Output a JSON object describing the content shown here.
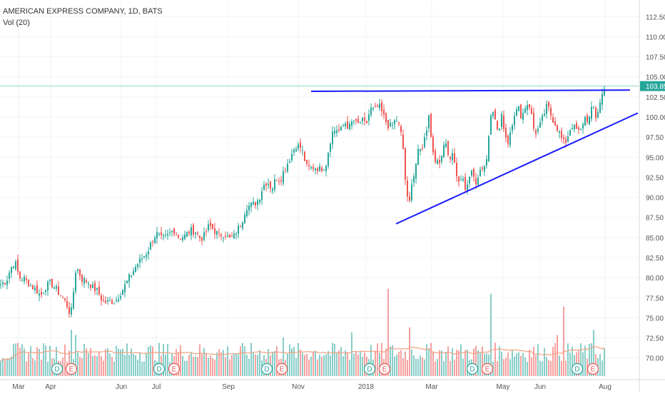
{
  "legend": {
    "symbol_line": "AMERICAN EXPRESS COMPANY, 1D, BATS",
    "volume_line": "Vol (20)"
  },
  "colors": {
    "up": "#26a69a",
    "down": "#ef5350",
    "trendline": "#1a1aff",
    "price_label_bg": "#26a69a",
    "volume_ma": "#f4a080",
    "axis_text": "#555555",
    "grid": "#f1f3f6"
  },
  "chart_data": {
    "type": "candlestick",
    "title": "AMERICAN EXPRESS COMPANY, 1D, BATS",
    "x_tick_labels": [
      "Mar",
      "Apr",
      "Jun",
      "Jul",
      "Sep",
      "Nov",
      "2018",
      "Mar",
      "May",
      "Jun",
      "Aug"
    ],
    "y_tick_labels": [
      "112.50",
      "110.00",
      "107.50",
      "105.00",
      "102.50",
      "100.00",
      "97.50",
      "95.00",
      "92.50",
      "90.00",
      "87.50",
      "85.00",
      "82.50",
      "80.00",
      "77.50",
      "75.00",
      "72.50",
      "70.00"
    ],
    "ylim": [
      69.0,
      113.5
    ],
    "last_price": 103.85,
    "last_price_label": "103.85",
    "grid": true,
    "price_path": [
      [
        0,
        79.2
      ],
      [
        8,
        79.6
      ],
      [
        14,
        81.2
      ],
      [
        20,
        82.0
      ],
      [
        26,
        80.0
      ],
      [
        34,
        79.8
      ],
      [
        42,
        79.0
      ],
      [
        50,
        78.5
      ],
      [
        56,
        77.7
      ],
      [
        62,
        78.8
      ],
      [
        70,
        79.4
      ],
      [
        78,
        78.5
      ],
      [
        86,
        77.6
      ],
      [
        92,
        76.8
      ],
      [
        98,
        75.3
      ],
      [
        101,
        77.0
      ],
      [
        104,
        80.8
      ],
      [
        108,
        81.0
      ],
      [
        114,
        79.8
      ],
      [
        122,
        79.5
      ],
      [
        130,
        78.7
      ],
      [
        136,
        78.3
      ],
      [
        142,
        77.2
      ],
      [
        148,
        76.9
      ],
      [
        154,
        77.1
      ],
      [
        160,
        77.0
      ],
      [
        166,
        77.8
      ],
      [
        172,
        78.7
      ],
      [
        180,
        80.0
      ],
      [
        186,
        80.9
      ],
      [
        192,
        81.8
      ],
      [
        200,
        82.6
      ],
      [
        206,
        83.3
      ],
      [
        212,
        84.6
      ],
      [
        218,
        85.5
      ],
      [
        226,
        84.8
      ],
      [
        234,
        85.2
      ],
      [
        242,
        86.0
      ],
      [
        250,
        85.0
      ],
      [
        258,
        85.2
      ],
      [
        266,
        85.9
      ],
      [
        274,
        85.7
      ],
      [
        280,
        84.8
      ],
      [
        286,
        85.3
      ],
      [
        292,
        86.5
      ],
      [
        298,
        86.0
      ],
      [
        306,
        85.3
      ],
      [
        314,
        85.5
      ],
      [
        320,
        84.8
      ],
      [
        326,
        85.0
      ],
      [
        332,
        86.0
      ],
      [
        338,
        87.0
      ],
      [
        344,
        88.8
      ],
      [
        350,
        89.0
      ],
      [
        356,
        89.2
      ],
      [
        362,
        89.8
      ],
      [
        368,
        91.5
      ],
      [
        374,
        92.0
      ],
      [
        380,
        91.0
      ],
      [
        386,
        92.5
      ],
      [
        392,
        92.2
      ],
      [
        398,
        93.6
      ],
      [
        404,
        94.6
      ],
      [
        410,
        95.8
      ],
      [
        414,
        96.5
      ],
      [
        420,
        96.2
      ],
      [
        424,
        95.5
      ],
      [
        428,
        93.8
      ],
      [
        434,
        93.6
      ],
      [
        440,
        93.8
      ],
      [
        446,
        93.5
      ],
      [
        452,
        93.7
      ],
      [
        456,
        94.2
      ],
      [
        460,
        96.2
      ],
      [
        464,
        98.0
      ],
      [
        470,
        98.5
      ],
      [
        476,
        98.2
      ],
      [
        482,
        99.4
      ],
      [
        488,
        98.6
      ],
      [
        494,
        99.6
      ],
      [
        500,
        99.0
      ],
      [
        506,
        99.6
      ],
      [
        512,
        99.0
      ],
      [
        518,
        101.0
      ],
      [
        524,
        100.8
      ],
      [
        530,
        101.4
      ],
      [
        536,
        100.2
      ],
      [
        542,
        99.0
      ],
      [
        548,
        98.8
      ],
      [
        554,
        99.8
      ],
      [
        560,
        98.5
      ],
      [
        564,
        96.0
      ],
      [
        568,
        91.0
      ],
      [
        572,
        88.5
      ],
      [
        576,
        92.0
      ],
      [
        580,
        93.0
      ],
      [
        584,
        95.5
      ],
      [
        590,
        96.0
      ],
      [
        596,
        98.0
      ],
      [
        600,
        100.5
      ],
      [
        604,
        96.5
      ],
      [
        608,
        95.0
      ],
      [
        614,
        93.8
      ],
      [
        620,
        96.5
      ],
      [
        624,
        97.0
      ],
      [
        628,
        94.5
      ],
      [
        632,
        95.5
      ],
      [
        636,
        94.5
      ],
      [
        640,
        91.5
      ],
      [
        646,
        92.5
      ],
      [
        652,
        91.0
      ],
      [
        656,
        92.5
      ],
      [
        660,
        93.0
      ],
      [
        666,
        92.0
      ],
      [
        672,
        93.5
      ],
      [
        678,
        94.0
      ],
      [
        682,
        95.0
      ],
      [
        686,
        100.5
      ],
      [
        690,
        101.0
      ],
      [
        694,
        99.0
      ],
      [
        698,
        98.0
      ],
      [
        702,
        100.0
      ],
      [
        706,
        98.5
      ],
      [
        710,
        96.5
      ],
      [
        716,
        99.0
      ],
      [
        720,
        100.5
      ],
      [
        726,
        101.0
      ],
      [
        730,
        100.0
      ],
      [
        736,
        101.5
      ],
      [
        740,
        101.8
      ],
      [
        744,
        100.2
      ],
      [
        748,
        98.0
      ],
      [
        754,
        98.5
      ],
      [
        760,
        100.0
      ],
      [
        766,
        101.5
      ],
      [
        772,
        100.0
      ],
      [
        778,
        99.0
      ],
      [
        784,
        97.8
      ],
      [
        788,
        96.8
      ],
      [
        792,
        97.0
      ],
      [
        796,
        98.0
      ],
      [
        800,
        99.0
      ],
      [
        806,
        98.5
      ],
      [
        812,
        98.0
      ],
      [
        818,
        100.0
      ],
      [
        824,
        99.5
      ],
      [
        830,
        101.5
      ],
      [
        834,
        100.0
      ],
      [
        838,
        101.0
      ],
      [
        842,
        102.5
      ],
      [
        846,
        103.85
      ]
    ],
    "annotations": {
      "resistance_line": {
        "from": [
          436,
          103.2
        ],
        "to": [
          883,
          103.35
        ]
      },
      "support_line": {
        "from": [
          555,
          86.7
        ],
        "to": [
          894,
          100.5
        ]
      },
      "event_markers": [
        {
          "label": "D",
          "type": "dividend"
        },
        {
          "label": "E",
          "type": "earnings"
        },
        {
          "label": "D",
          "type": "dividend"
        },
        {
          "label": "E",
          "type": "earnings"
        },
        {
          "label": "D",
          "type": "dividend"
        },
        {
          "label": "E",
          "type": "earnings"
        },
        {
          "label": "D",
          "type": "dividend"
        },
        {
          "label": "E",
          "type": "earnings"
        },
        {
          "label": "D",
          "type": "dividend"
        },
        {
          "label": "E",
          "type": "earnings"
        },
        {
          "label": "D",
          "type": "dividend"
        },
        {
          "label": "E",
          "type": "earnings"
        }
      ]
    },
    "volume_spikes": [
      {
        "day": 98,
        "ratio": 1.8
      },
      {
        "day": 104,
        "ratio": 1.6
      },
      {
        "day": 396,
        "ratio": 1.5
      },
      {
        "day": 492,
        "ratio": 1.7
      },
      {
        "day": 542,
        "ratio": 3.4
      },
      {
        "day": 572,
        "ratio": 1.9
      },
      {
        "day": 686,
        "ratio": 3.2
      },
      {
        "day": 780,
        "ratio": 1.6
      },
      {
        "day": 790,
        "ratio": 2.7
      },
      {
        "day": 832,
        "ratio": 1.8
      }
    ]
  }
}
